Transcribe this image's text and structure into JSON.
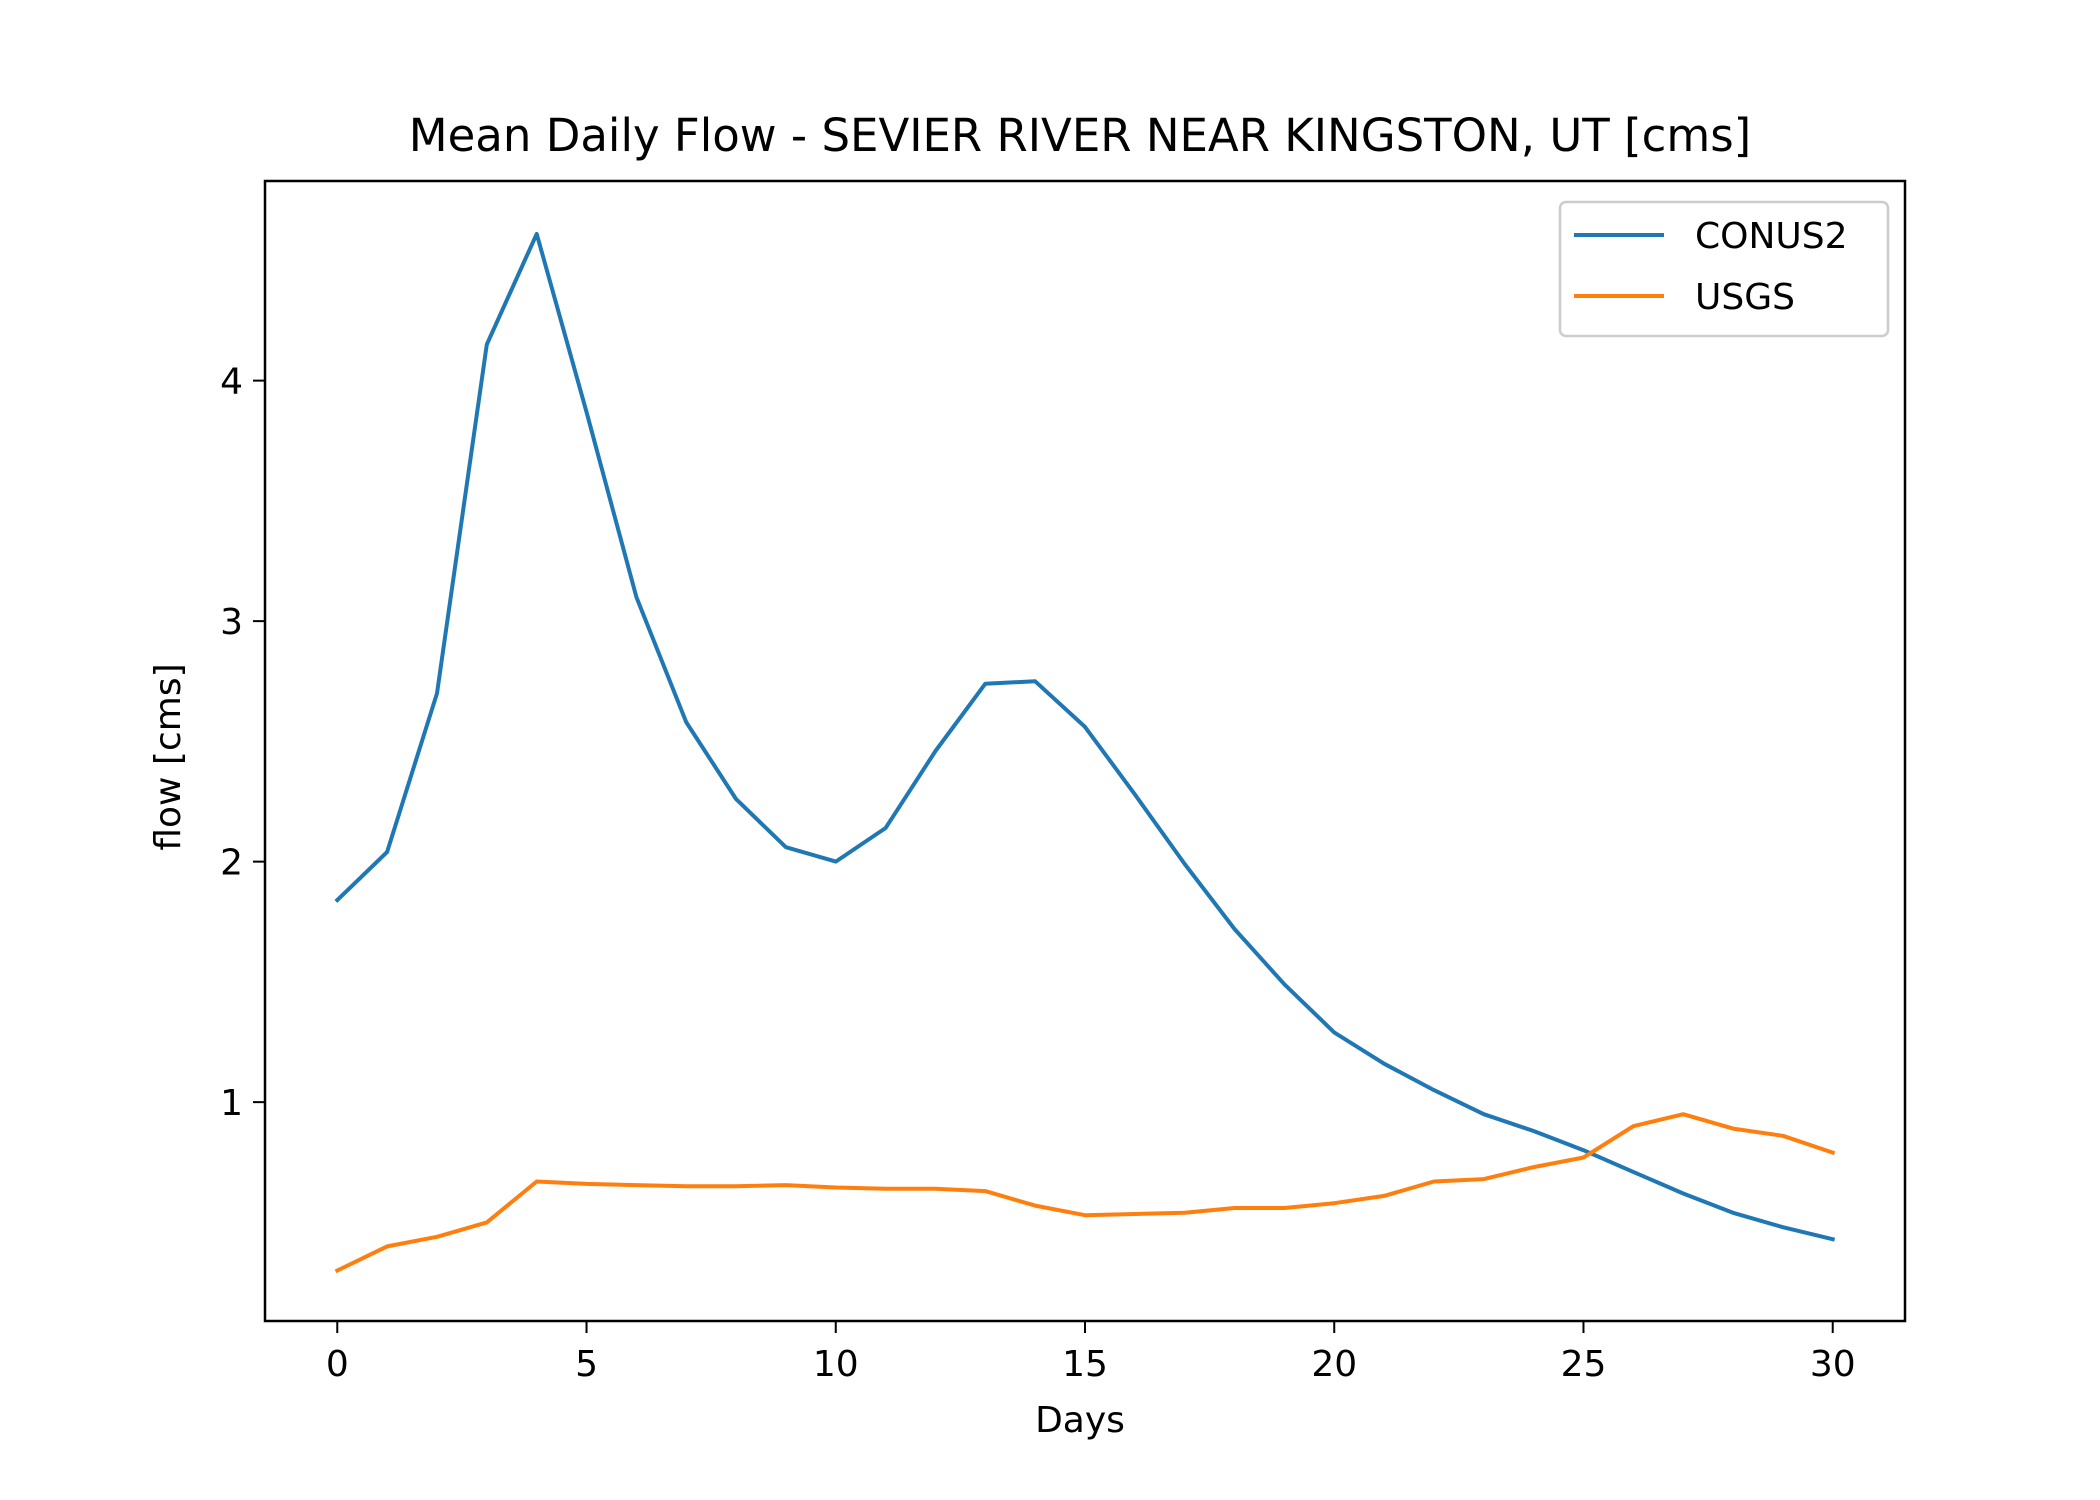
{
  "chart_data": {
    "type": "line",
    "title": "Mean Daily Flow - SEVIER RIVER NEAR KINGSTON, UT [cms]",
    "xlabel": "Days",
    "ylabel": "flow [cms]",
    "xlim": [
      -1.45,
      31.45
    ],
    "ylim": [
      0.09,
      4.83
    ],
    "xticks": [
      0,
      5,
      10,
      15,
      20,
      25,
      30
    ],
    "yticks": [
      1,
      2,
      3,
      4
    ],
    "grid": false,
    "legend_position": "top-right",
    "x": [
      0,
      1,
      2,
      3,
      4,
      5,
      6,
      7,
      8,
      9,
      10,
      11,
      12,
      13,
      14,
      15,
      16,
      17,
      18,
      19,
      20,
      21,
      22,
      23,
      24,
      25,
      26,
      27,
      28,
      29,
      30
    ],
    "series": [
      {
        "name": "CONUS2",
        "color": "#1f77b4",
        "values": [
          1.84,
          2.04,
          2.7,
          4.15,
          4.61,
          3.87,
          3.1,
          2.58,
          2.26,
          2.06,
          2.0,
          2.14,
          2.46,
          2.74,
          2.75,
          2.56,
          2.28,
          1.99,
          1.72,
          1.49,
          1.29,
          1.16,
          1.05,
          0.95,
          0.88,
          0.8,
          0.71,
          0.62,
          0.54,
          0.48,
          0.43
        ]
      },
      {
        "name": "USGS",
        "color": "#ff7f0e",
        "values": [
          0.3,
          0.4,
          0.44,
          0.5,
          0.67,
          0.66,
          0.655,
          0.65,
          0.65,
          0.655,
          0.645,
          0.64,
          0.64,
          0.63,
          0.57,
          0.53,
          0.535,
          0.54,
          0.56,
          0.56,
          0.58,
          0.61,
          0.67,
          0.68,
          0.73,
          0.77,
          0.9,
          0.95,
          0.89,
          0.86,
          0.79
        ]
      }
    ]
  }
}
